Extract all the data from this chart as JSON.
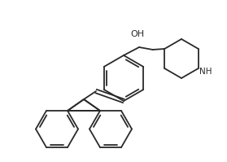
{
  "bg_color": "#ffffff",
  "line_color": "#2a2a2a",
  "line_width": 1.3,
  "text_color": "#2a2a2a",
  "font_size": 8.0,
  "nh_font_size": 7.5,
  "oh_font_size": 8.0
}
